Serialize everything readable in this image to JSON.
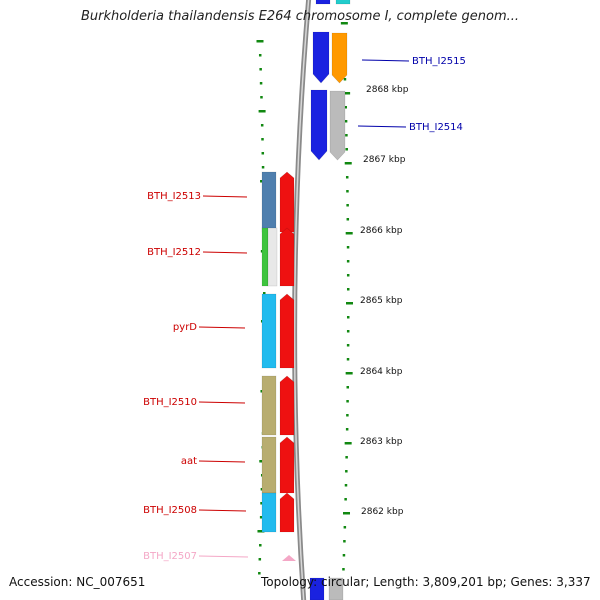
{
  "title": "Burkholderia thailandensis E264 chromosome I, complete genom...",
  "footer": {
    "accession": "Accession: NC_007651",
    "summary": "Topology: circular; Length: 3,809,201 bp; Genes: 3,337"
  },
  "ticks": [
    "2868 kbp",
    "2867 kbp",
    "2866 kbp",
    "2865 kbp",
    "2864 kbp",
    "2863 kbp",
    "2862 kbp"
  ],
  "genes_reverse": [
    {
      "name": "BTH_I2513",
      "color": "#4f7fae"
    },
    {
      "name": "BTH_I2512",
      "color": "#3ec43e"
    },
    {
      "name": "pyrD",
      "color": "#22bbee"
    },
    {
      "name": "BTH_I2510",
      "color": "#b8ad70"
    },
    {
      "name": "aat",
      "color": "#b8ad70"
    },
    {
      "name": "BTH_I2508",
      "color": "#22bbee"
    },
    {
      "name": "BTH_I2507",
      "color": "#f4a7c6"
    }
  ],
  "genes_forward": [
    {
      "name": "BTH_I2515",
      "color": "#1a22e0"
    },
    {
      "name": "BTH_I2514",
      "color": "#1a22e0"
    }
  ],
  "colors": {
    "label_reverse": "#cc0000",
    "label_forward": "#0000aa",
    "label_faded": "#f4a7c6",
    "strand_red": "#ee1111",
    "orange": "#ff9900",
    "grey": "#bbbbbb",
    "tick_green": "#118811"
  }
}
